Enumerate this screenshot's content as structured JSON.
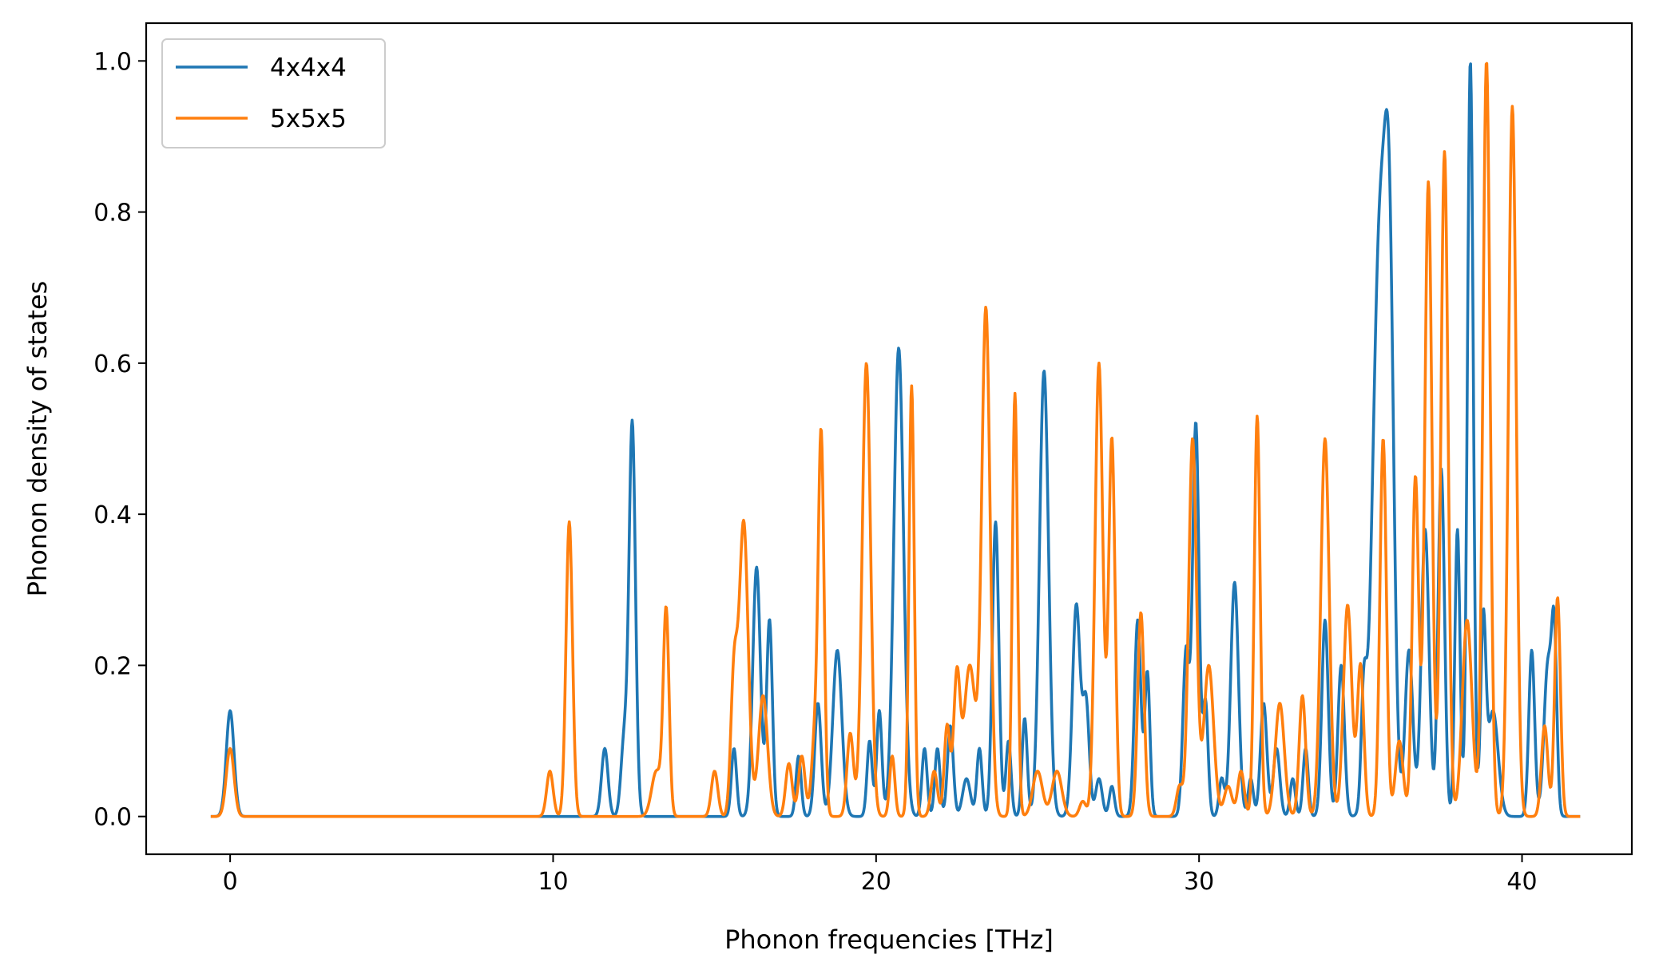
{
  "chart_data": {
    "type": "line",
    "title": "",
    "xlabel": "Phonon frequencies [THz]",
    "ylabel": "Phonon density of states",
    "xlim": [
      -2.6,
      43.4
    ],
    "ylim": [
      -0.05,
      1.05
    ],
    "xticks": [
      0,
      10,
      20,
      30,
      40
    ],
    "yticks": [
      0.0,
      0.2,
      0.4,
      0.6,
      0.8,
      1.0
    ],
    "xtick_labels": [
      "0",
      "10",
      "20",
      "30",
      "40"
    ],
    "ytick_labels": [
      "0.0",
      "0.2",
      "0.4",
      "0.6",
      "0.8",
      "1.0"
    ],
    "grid": false,
    "legend_position": "top-left",
    "series": [
      {
        "name": "4x4x4",
        "color": "#1f77b4",
        "peaks": [
          [
            0.0,
            0.14,
            0.12
          ],
          [
            11.6,
            0.09,
            0.1
          ],
          [
            12.2,
            0.1,
            0.1
          ],
          [
            12.45,
            0.52,
            0.1
          ],
          [
            15.6,
            0.09,
            0.08
          ],
          [
            16.3,
            0.33,
            0.12
          ],
          [
            16.7,
            0.26,
            0.09
          ],
          [
            17.6,
            0.08,
            0.08
          ],
          [
            18.2,
            0.15,
            0.1
          ],
          [
            18.8,
            0.22,
            0.14
          ],
          [
            19.8,
            0.1,
            0.08
          ],
          [
            20.1,
            0.14,
            0.08
          ],
          [
            20.7,
            0.62,
            0.15
          ],
          [
            21.5,
            0.09,
            0.08
          ],
          [
            21.9,
            0.09,
            0.08
          ],
          [
            22.3,
            0.12,
            0.09
          ],
          [
            22.8,
            0.05,
            0.12
          ],
          [
            23.2,
            0.09,
            0.08
          ],
          [
            23.7,
            0.39,
            0.1
          ],
          [
            24.1,
            0.1,
            0.08
          ],
          [
            24.6,
            0.13,
            0.08
          ],
          [
            25.2,
            0.59,
            0.14
          ],
          [
            26.2,
            0.28,
            0.12
          ],
          [
            26.5,
            0.15,
            0.1
          ],
          [
            26.9,
            0.05,
            0.1
          ],
          [
            27.3,
            0.04,
            0.08
          ],
          [
            28.1,
            0.26,
            0.1
          ],
          [
            28.4,
            0.19,
            0.08
          ],
          [
            29.6,
            0.22,
            0.1
          ],
          [
            29.9,
            0.52,
            0.1
          ],
          [
            30.2,
            0.15,
            0.08
          ],
          [
            30.7,
            0.05,
            0.08
          ],
          [
            31.1,
            0.31,
            0.12
          ],
          [
            31.6,
            0.05,
            0.08
          ],
          [
            32.0,
            0.15,
            0.1
          ],
          [
            32.4,
            0.09,
            0.1
          ],
          [
            32.9,
            0.05,
            0.08
          ],
          [
            33.3,
            0.09,
            0.08
          ],
          [
            33.9,
            0.26,
            0.1
          ],
          [
            34.4,
            0.2,
            0.1
          ],
          [
            35.1,
            0.14,
            0.08
          ],
          [
            35.6,
            0.77,
            0.22
          ],
          [
            35.9,
            0.55,
            0.14
          ],
          [
            36.5,
            0.22,
            0.12
          ],
          [
            37.0,
            0.38,
            0.12
          ],
          [
            37.5,
            0.46,
            0.1
          ],
          [
            38.0,
            0.38,
            0.08
          ],
          [
            38.4,
            1.0,
            0.09
          ],
          [
            38.8,
            0.25,
            0.08
          ],
          [
            39.1,
            0.14,
            0.16
          ],
          [
            40.3,
            0.22,
            0.09
          ],
          [
            40.8,
            0.2,
            0.12
          ],
          [
            41.0,
            0.22,
            0.08
          ]
        ]
      },
      {
        "name": "5x5x5",
        "color": "#ff7f0e",
        "peaks": [
          [
            0.0,
            0.09,
            0.12
          ],
          [
            9.9,
            0.06,
            0.1
          ],
          [
            10.5,
            0.39,
            0.1
          ],
          [
            13.2,
            0.06,
            0.15
          ],
          [
            13.5,
            0.27,
            0.09
          ],
          [
            15.0,
            0.06,
            0.1
          ],
          [
            15.6,
            0.18,
            0.1
          ],
          [
            15.9,
            0.39,
            0.14
          ],
          [
            16.5,
            0.16,
            0.14
          ],
          [
            17.3,
            0.07,
            0.1
          ],
          [
            17.7,
            0.08,
            0.1
          ],
          [
            18.1,
            0.1,
            0.1
          ],
          [
            18.3,
            0.5,
            0.09
          ],
          [
            19.2,
            0.11,
            0.1
          ],
          [
            19.7,
            0.6,
            0.13
          ],
          [
            20.5,
            0.08,
            0.08
          ],
          [
            21.1,
            0.57,
            0.08
          ],
          [
            21.8,
            0.06,
            0.1
          ],
          [
            22.2,
            0.12,
            0.09
          ],
          [
            22.5,
            0.18,
            0.1
          ],
          [
            22.9,
            0.2,
            0.18
          ],
          [
            23.4,
            0.67,
            0.13
          ],
          [
            24.3,
            0.56,
            0.08
          ],
          [
            25.0,
            0.06,
            0.15
          ],
          [
            25.6,
            0.06,
            0.15
          ],
          [
            26.4,
            0.02,
            0.1
          ],
          [
            26.9,
            0.6,
            0.12
          ],
          [
            27.3,
            0.5,
            0.1
          ],
          [
            28.2,
            0.27,
            0.1
          ],
          [
            29.4,
            0.04,
            0.1
          ],
          [
            29.8,
            0.5,
            0.12
          ],
          [
            30.3,
            0.2,
            0.15
          ],
          [
            30.9,
            0.04,
            0.12
          ],
          [
            31.3,
            0.06,
            0.1
          ],
          [
            31.8,
            0.53,
            0.09
          ],
          [
            32.5,
            0.15,
            0.14
          ],
          [
            33.2,
            0.16,
            0.1
          ],
          [
            33.9,
            0.5,
            0.13
          ],
          [
            34.6,
            0.28,
            0.13
          ],
          [
            35.0,
            0.2,
            0.1
          ],
          [
            35.7,
            0.5,
            0.1
          ],
          [
            36.2,
            0.1,
            0.12
          ],
          [
            36.7,
            0.45,
            0.1
          ],
          [
            37.1,
            0.84,
            0.11
          ],
          [
            37.6,
            0.88,
            0.11
          ],
          [
            38.3,
            0.26,
            0.15
          ],
          [
            38.9,
            1.0,
            0.11
          ],
          [
            39.7,
            0.94,
            0.12
          ],
          [
            40.7,
            0.12,
            0.1
          ],
          [
            41.1,
            0.29,
            0.09
          ]
        ]
      }
    ]
  }
}
